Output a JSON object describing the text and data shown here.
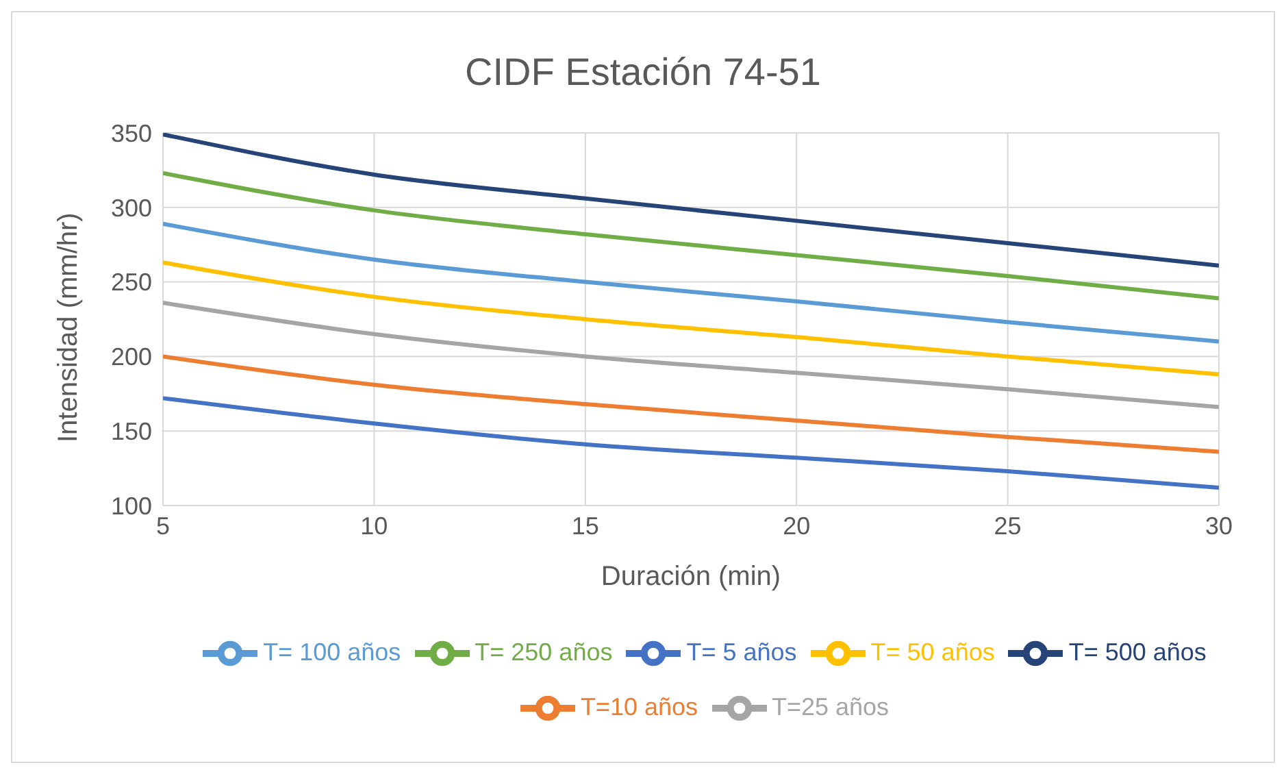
{
  "chart_data": {
    "type": "line",
    "title": "CIDF Estación 74-51",
    "xlabel": "Duración (min)",
    "ylabel": "Intensidad (mm/hr)",
    "x": [
      5,
      10,
      15,
      20,
      25,
      30
    ],
    "xlim": [
      5,
      30
    ],
    "xticks": [
      5,
      10,
      15,
      20,
      25,
      30
    ],
    "ylim": [
      100,
      350
    ],
    "yticks": [
      100,
      150,
      200,
      250,
      300,
      350
    ],
    "grid": true,
    "legend": "bottom",
    "marker": "none",
    "line_style": "solid",
    "series": [
      {
        "name": "T= 5 años",
        "color": "#4472c4",
        "values": [
          172,
          155,
          141,
          132,
          123,
          112
        ]
      },
      {
        "name": "T=10 años",
        "color": "#ed7d31",
        "values": [
          200,
          181,
          168,
          157,
          146,
          136
        ]
      },
      {
        "name": "T=25 años",
        "color": "#a5a5a5",
        "values": [
          236,
          215,
          200,
          189,
          178,
          166
        ]
      },
      {
        "name": "T= 50 años",
        "color": "#ffc000",
        "values": [
          263,
          240,
          225,
          213,
          200,
          188
        ]
      },
      {
        "name": "T= 100 años",
        "color": "#5b9bd5",
        "values": [
          289,
          265,
          250,
          237,
          223,
          210
        ]
      },
      {
        "name": "T= 250 años",
        "color": "#70ad47",
        "values": [
          323,
          298,
          282,
          268,
          254,
          239
        ]
      },
      {
        "name": "T= 500 años",
        "color": "#264478",
        "values": [
          349,
          322,
          306,
          291,
          276,
          261
        ]
      }
    ]
  }
}
